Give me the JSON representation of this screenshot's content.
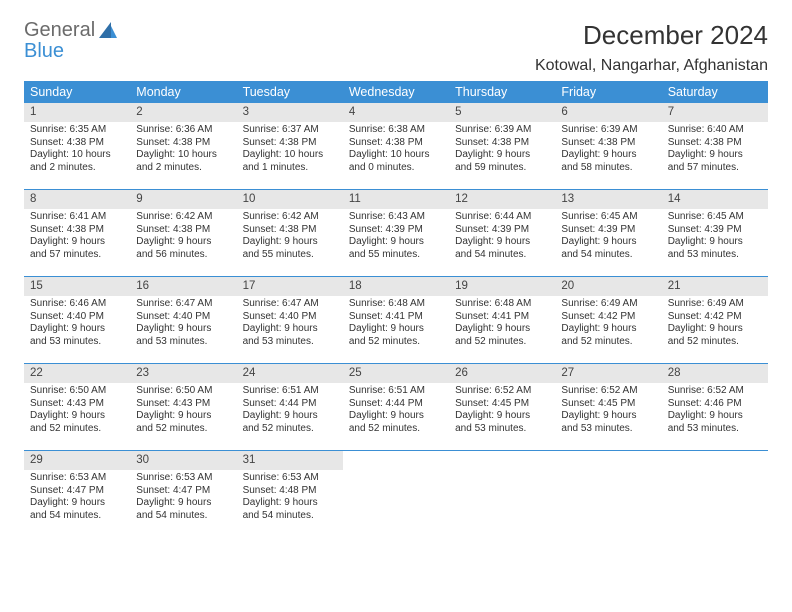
{
  "logo": {
    "line1": "General",
    "line2": "Blue"
  },
  "title": "December 2024",
  "location": "Kotowal, Nangarhar, Afghanistan",
  "colors": {
    "header_bg": "#3b8fd4",
    "header_text": "#ffffff",
    "daynum_bg": "#e7e7e7",
    "rule": "#3b8fd4",
    "logo_gray": "#6b6b6b",
    "logo_blue": "#3b8fd4",
    "text": "#333333",
    "background": "#ffffff"
  },
  "weekdays": [
    "Sunday",
    "Monday",
    "Tuesday",
    "Wednesday",
    "Thursday",
    "Friday",
    "Saturday"
  ],
  "weeks": [
    [
      {
        "n": "1",
        "sr": "6:35 AM",
        "ss": "4:38 PM",
        "dl": "10 hours and 2 minutes."
      },
      {
        "n": "2",
        "sr": "6:36 AM",
        "ss": "4:38 PM",
        "dl": "10 hours and 2 minutes."
      },
      {
        "n": "3",
        "sr": "6:37 AM",
        "ss": "4:38 PM",
        "dl": "10 hours and 1 minutes."
      },
      {
        "n": "4",
        "sr": "6:38 AM",
        "ss": "4:38 PM",
        "dl": "10 hours and 0 minutes."
      },
      {
        "n": "5",
        "sr": "6:39 AM",
        "ss": "4:38 PM",
        "dl": "9 hours and 59 minutes."
      },
      {
        "n": "6",
        "sr": "6:39 AM",
        "ss": "4:38 PM",
        "dl": "9 hours and 58 minutes."
      },
      {
        "n": "7",
        "sr": "6:40 AM",
        "ss": "4:38 PM",
        "dl": "9 hours and 57 minutes."
      }
    ],
    [
      {
        "n": "8",
        "sr": "6:41 AM",
        "ss": "4:38 PM",
        "dl": "9 hours and 57 minutes."
      },
      {
        "n": "9",
        "sr": "6:42 AM",
        "ss": "4:38 PM",
        "dl": "9 hours and 56 minutes."
      },
      {
        "n": "10",
        "sr": "6:42 AM",
        "ss": "4:38 PM",
        "dl": "9 hours and 55 minutes."
      },
      {
        "n": "11",
        "sr": "6:43 AM",
        "ss": "4:39 PM",
        "dl": "9 hours and 55 minutes."
      },
      {
        "n": "12",
        "sr": "6:44 AM",
        "ss": "4:39 PM",
        "dl": "9 hours and 54 minutes."
      },
      {
        "n": "13",
        "sr": "6:45 AM",
        "ss": "4:39 PM",
        "dl": "9 hours and 54 minutes."
      },
      {
        "n": "14",
        "sr": "6:45 AM",
        "ss": "4:39 PM",
        "dl": "9 hours and 53 minutes."
      }
    ],
    [
      {
        "n": "15",
        "sr": "6:46 AM",
        "ss": "4:40 PM",
        "dl": "9 hours and 53 minutes."
      },
      {
        "n": "16",
        "sr": "6:47 AM",
        "ss": "4:40 PM",
        "dl": "9 hours and 53 minutes."
      },
      {
        "n": "17",
        "sr": "6:47 AM",
        "ss": "4:40 PM",
        "dl": "9 hours and 53 minutes."
      },
      {
        "n": "18",
        "sr": "6:48 AM",
        "ss": "4:41 PM",
        "dl": "9 hours and 52 minutes."
      },
      {
        "n": "19",
        "sr": "6:48 AM",
        "ss": "4:41 PM",
        "dl": "9 hours and 52 minutes."
      },
      {
        "n": "20",
        "sr": "6:49 AM",
        "ss": "4:42 PM",
        "dl": "9 hours and 52 minutes."
      },
      {
        "n": "21",
        "sr": "6:49 AM",
        "ss": "4:42 PM",
        "dl": "9 hours and 52 minutes."
      }
    ],
    [
      {
        "n": "22",
        "sr": "6:50 AM",
        "ss": "4:43 PM",
        "dl": "9 hours and 52 minutes."
      },
      {
        "n": "23",
        "sr": "6:50 AM",
        "ss": "4:43 PM",
        "dl": "9 hours and 52 minutes."
      },
      {
        "n": "24",
        "sr": "6:51 AM",
        "ss": "4:44 PM",
        "dl": "9 hours and 52 minutes."
      },
      {
        "n": "25",
        "sr": "6:51 AM",
        "ss": "4:44 PM",
        "dl": "9 hours and 52 minutes."
      },
      {
        "n": "26",
        "sr": "6:52 AM",
        "ss": "4:45 PM",
        "dl": "9 hours and 53 minutes."
      },
      {
        "n": "27",
        "sr": "6:52 AM",
        "ss": "4:45 PM",
        "dl": "9 hours and 53 minutes."
      },
      {
        "n": "28",
        "sr": "6:52 AM",
        "ss": "4:46 PM",
        "dl": "9 hours and 53 minutes."
      }
    ],
    [
      {
        "n": "29",
        "sr": "6:53 AM",
        "ss": "4:47 PM",
        "dl": "9 hours and 54 minutes."
      },
      {
        "n": "30",
        "sr": "6:53 AM",
        "ss": "4:47 PM",
        "dl": "9 hours and 54 minutes."
      },
      {
        "n": "31",
        "sr": "6:53 AM",
        "ss": "4:48 PM",
        "dl": "9 hours and 54 minutes."
      },
      null,
      null,
      null,
      null
    ]
  ],
  "labels": {
    "sunrise": "Sunrise:",
    "sunset": "Sunset:",
    "daylight": "Daylight:"
  }
}
